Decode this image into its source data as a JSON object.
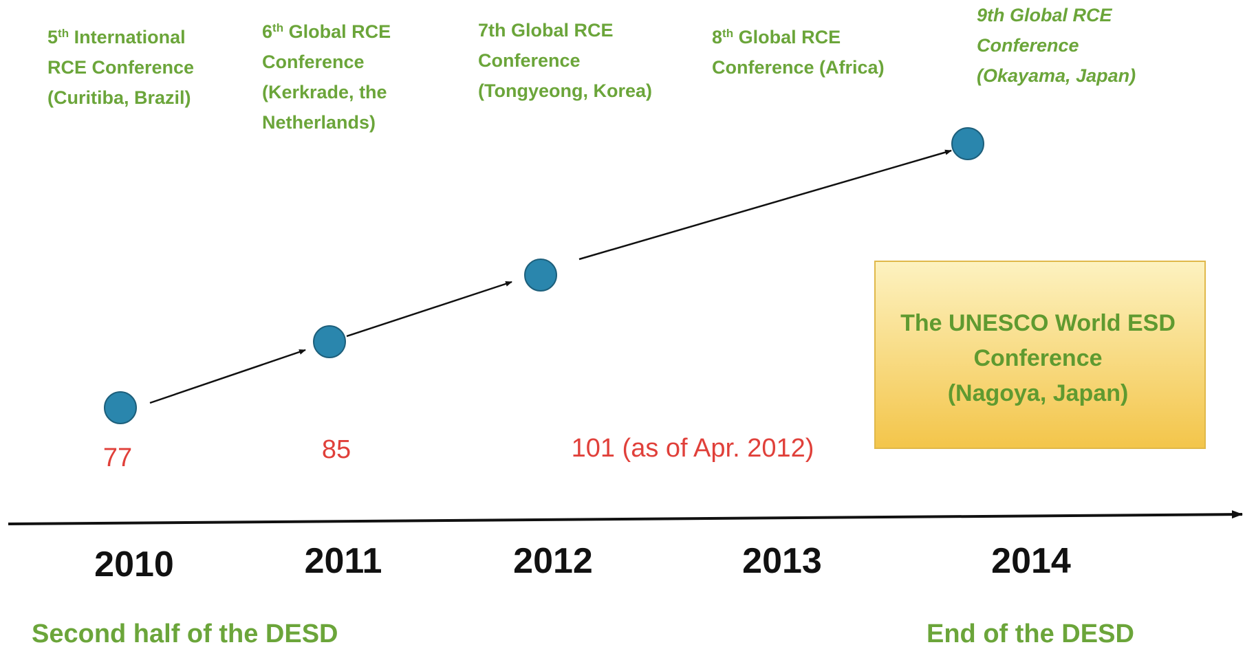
{
  "events": [
    {
      "lines": [
        [
          {
            "text": "5"
          },
          {
            "text": "th",
            "sup": true
          },
          {
            "text": "  International"
          }
        ],
        [
          {
            "text": "RCE Conference"
          }
        ],
        [
          {
            "text": "(Curitiba, Brazil)"
          }
        ]
      ]
    },
    {
      "lines": [
        [
          {
            "text": "6"
          },
          {
            "text": "th",
            "sup": true
          },
          {
            "text": "  Global RCE"
          }
        ],
        [
          {
            "text": "Conference"
          }
        ],
        [
          {
            "text": "(Kerkrade, the"
          }
        ],
        [
          {
            "text": "Netherlands)"
          }
        ]
      ]
    },
    {
      "lines": [
        [
          {
            "text": "7th Global RCE"
          }
        ],
        [
          {
            "text": "Conference"
          }
        ],
        [
          {
            "text": "(Tongyeong, Korea)"
          }
        ]
      ]
    },
    {
      "lines": [
        [
          {
            "text": "8"
          },
          {
            "text": "th",
            "sup": true
          },
          {
            "text": " Global RCE"
          }
        ],
        [
          {
            "text": "Conference (Africa)"
          }
        ]
      ]
    },
    {
      "lines": [
        [
          {
            "text": "9th Global RCE"
          }
        ],
        [
          {
            "text": "Conference"
          }
        ],
        [
          {
            "text": "(Okayama, Japan)"
          }
        ]
      ],
      "italic": true
    }
  ],
  "counts": [
    "77",
    "85",
    "101 (as of Apr. 2012)"
  ],
  "box": {
    "lines": [
      "The UNESCO World ESD",
      "Conference",
      "(Nagoya, Japan)"
    ]
  },
  "years": [
    "2010",
    "2011",
    "2012",
    "2013",
    "2014"
  ],
  "notes": [
    "Second half of the DESD",
    "End of the DESD"
  ]
}
